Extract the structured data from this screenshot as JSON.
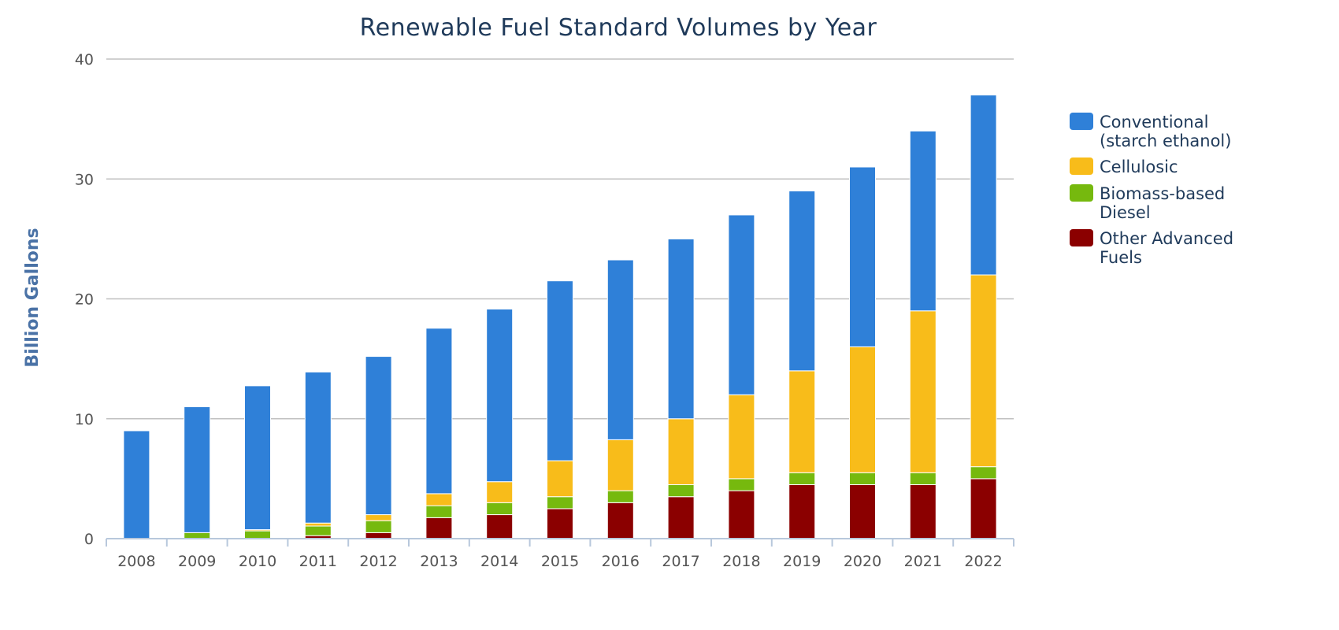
{
  "chart_data": {
    "type": "bar",
    "stacked": true,
    "title": "Renewable Fuel Standard Volumes by Year",
    "xlabel": "",
    "ylabel": "Billion Gallons",
    "ylim": [
      0,
      40
    ],
    "yticks": [
      "0",
      "10",
      "20",
      "30",
      "40"
    ],
    "grid": true,
    "legend_position": "right",
    "categories": [
      "2008",
      "2009",
      "2010",
      "2011",
      "2012",
      "2013",
      "2014",
      "2015",
      "2016",
      "2017",
      "2018",
      "2019",
      "2020",
      "2021",
      "2022"
    ],
    "series": [
      {
        "name": "Other Advanced Fuels",
        "label_lines": [
          "Other Advanced",
          "Fuels"
        ],
        "color": "#8b0000",
        "values": [
          0,
          0,
          0,
          0.25,
          0.5,
          1.75,
          2.0,
          2.5,
          3.0,
          3.5,
          4.0,
          4.5,
          4.5,
          4.5,
          5.0
        ]
      },
      {
        "name": "Biomass-based Diesel",
        "label_lines": [
          "Biomass-based",
          "Diesel"
        ],
        "color": "#76b90e",
        "values": [
          0,
          0.5,
          0.65,
          0.8,
          1.0,
          1.0,
          1.0,
          1.0,
          1.0,
          1.0,
          1.0,
          1.0,
          1.0,
          1.0,
          1.0
        ]
      },
      {
        "name": "Cellulosic",
        "label_lines": [
          "Cellulosic"
        ],
        "color": "#f8bc1a",
        "values": [
          0,
          0,
          0.1,
          0.25,
          0.5,
          1.0,
          1.75,
          3.0,
          4.25,
          5.5,
          7.0,
          8.5,
          10.5,
          13.5,
          16.0
        ]
      },
      {
        "name": "Conventional (starch ethanol)",
        "label_lines": [
          "Conventional",
          "(starch ethanol)"
        ],
        "color": "#2f80d8",
        "values": [
          9.0,
          10.5,
          12.0,
          12.6,
          13.2,
          13.8,
          14.4,
          15.0,
          15.0,
          15.0,
          15.0,
          15.0,
          15.0,
          15.0,
          15.0
        ]
      }
    ],
    "legend_order": [
      "Conventional (starch ethanol)",
      "Cellulosic",
      "Biomass-based Diesel",
      "Other Advanced Fuels"
    ]
  }
}
